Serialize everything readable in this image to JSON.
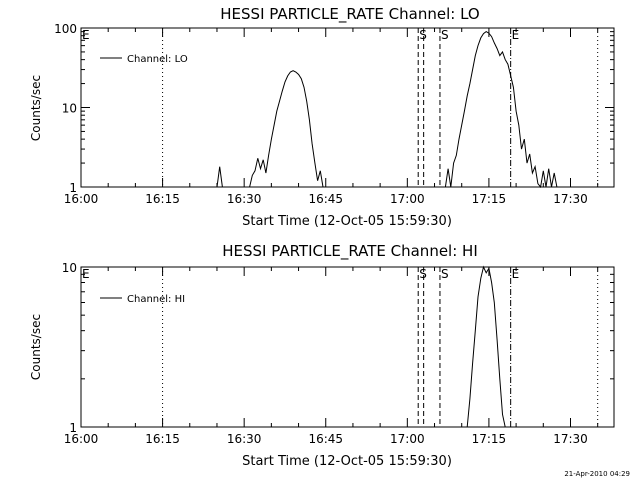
{
  "footer_timestamp": "21-Apr-2010 04:29",
  "chart_data": [
    {
      "type": "line",
      "title": "HESSI PARTICLE_RATE Channel: LO",
      "xlabel": "Start Time (12-Oct-05 15:59:30)",
      "ylabel": "Counts/sec",
      "yscale": "log",
      "xlim": [
        "16:00",
        "17:38"
      ],
      "ylim": [
        1,
        100
      ],
      "x_ticks": [
        "16:00",
        "16:15",
        "16:30",
        "16:45",
        "17:00",
        "17:15",
        "17:30"
      ],
      "y_ticks": [
        "1",
        "10",
        "100"
      ],
      "legend": {
        "position": "top-left",
        "label": "Channel: LO"
      },
      "markers": [
        {
          "label": "E",
          "time": "16:00",
          "style": "none"
        },
        {
          "label": "",
          "time": "16:15",
          "style": "dotted"
        },
        {
          "label": "S",
          "time": "17:02",
          "style": "dashed"
        },
        {
          "label": "",
          "time": "17:03",
          "style": "dashed"
        },
        {
          "label": "S",
          "time": "17:06",
          "style": "dashed"
        },
        {
          "label": "E",
          "time": "17:19",
          "style": "dashdot"
        },
        {
          "label": "",
          "time": "17:35",
          "style": "dotted"
        }
      ],
      "series": [
        {
          "points": [
            [
              "16:25",
              1
            ],
            [
              "16:25.5",
              1.8
            ],
            [
              "16:26",
              1
            ],
            [
              "16:31",
              1
            ],
            [
              "16:31.5",
              1.4
            ],
            [
              "16:32",
              1.6
            ],
            [
              "16:32.5",
              2.3
            ],
            [
              "16:33",
              1.7
            ],
            [
              "16:33.5",
              2.2
            ],
            [
              "16:34",
              1.5
            ],
            [
              "16:34.5",
              2.5
            ],
            [
              "16:35",
              4
            ],
            [
              "16:35.5",
              6
            ],
            [
              "16:36",
              9
            ],
            [
              "16:36.5",
              12
            ],
            [
              "16:37",
              16
            ],
            [
              "16:37.5",
              21
            ],
            [
              "16:38",
              25
            ],
            [
              "16:38.5",
              28
            ],
            [
              "16:39",
              29
            ],
            [
              "16:39.5",
              28
            ],
            [
              "16:40",
              26
            ],
            [
              "16:40.5",
              23
            ],
            [
              "16:41",
              18
            ],
            [
              "16:41.5",
              12
            ],
            [
              "16:42",
              7
            ],
            [
              "16:42.5",
              3.5
            ],
            [
              "16:43",
              2
            ],
            [
              "16:43.5",
              1.2
            ],
            [
              "16:44",
              1.6
            ],
            [
              "16:44.5",
              1
            ],
            [
              "17:07",
              1
            ],
            [
              "17:07.5",
              1.7
            ],
            [
              "17:08",
              1
            ],
            [
              "17:08.5",
              2
            ],
            [
              "17:09",
              2.5
            ],
            [
              "17:09.5",
              4
            ],
            [
              "17:10",
              6
            ],
            [
              "17:10.5",
              9
            ],
            [
              "17:11",
              14
            ],
            [
              "17:11.5",
              20
            ],
            [
              "17:12",
              30
            ],
            [
              "17:12.5",
              45
            ],
            [
              "17:13",
              60
            ],
            [
              "17:13.5",
              75
            ],
            [
              "17:14",
              85
            ],
            [
              "17:14.5",
              90
            ],
            [
              "17:15",
              86
            ],
            [
              "17:15.5",
              78
            ],
            [
              "17:16",
              65
            ],
            [
              "17:16.5",
              55
            ],
            [
              "17:17",
              45
            ],
            [
              "17:17.5",
              50
            ],
            [
              "17:18",
              40
            ],
            [
              "17:18.5",
              35
            ],
            [
              "17:19",
              25
            ],
            [
              "17:19.5",
              18
            ],
            [
              "17:20",
              9
            ],
            [
              "17:20.5",
              6
            ],
            [
              "17:21",
              3
            ],
            [
              "17:21.5",
              4
            ],
            [
              "17:22",
              2
            ],
            [
              "17:22.5",
              2.6
            ],
            [
              "17:23",
              1.5
            ],
            [
              "17:23.5",
              1.8
            ],
            [
              "17:24",
              1.1
            ],
            [
              "17:24.5",
              1
            ],
            [
              "17:25",
              1.6
            ],
            [
              "17:25.5",
              1
            ],
            [
              "17:26",
              1.7
            ],
            [
              "17:26.5",
              1
            ],
            [
              "17:27",
              1.5
            ],
            [
              "17:27.5",
              1
            ]
          ]
        }
      ]
    },
    {
      "type": "line",
      "title": "HESSI PARTICLE_RATE Channel: HI",
      "xlabel": "Start Time (12-Oct-05 15:59:30)",
      "ylabel": "Counts/sec",
      "yscale": "log",
      "xlim": [
        "16:00",
        "17:38"
      ],
      "ylim": [
        1,
        10
      ],
      "x_ticks": [
        "16:00",
        "16:15",
        "16:30",
        "16:45",
        "17:00",
        "17:15",
        "17:30"
      ],
      "y_ticks": [
        "1",
        "10"
      ],
      "legend": {
        "position": "top-left",
        "label": "Channel: HI"
      },
      "markers": [
        {
          "label": "E",
          "time": "16:00",
          "style": "none"
        },
        {
          "label": "",
          "time": "16:15",
          "style": "dotted"
        },
        {
          "label": "S",
          "time": "17:02",
          "style": "dashed"
        },
        {
          "label": "",
          "time": "17:03",
          "style": "dashed"
        },
        {
          "label": "S",
          "time": "17:06",
          "style": "dashed"
        },
        {
          "label": "E",
          "time": "17:19",
          "style": "dashdot"
        },
        {
          "label": "",
          "time": "17:35",
          "style": "dotted"
        }
      ],
      "series": [
        {
          "points": [
            [
              "17:11",
              1
            ],
            [
              "17:11.5",
              1.5
            ],
            [
              "17:12",
              2.5
            ],
            [
              "17:12.5",
              4
            ],
            [
              "17:13",
              6.5
            ],
            [
              "17:13.5",
              8.5
            ],
            [
              "17:14",
              10
            ],
            [
              "17:14.5",
              9.2
            ],
            [
              "17:15",
              9.8
            ],
            [
              "17:15.5",
              8
            ],
            [
              "17:16",
              6
            ],
            [
              "17:16.5",
              3.5
            ],
            [
              "17:17",
              2
            ],
            [
              "17:17.5",
              1.2
            ],
            [
              "17:18",
              1
            ]
          ]
        }
      ]
    }
  ]
}
